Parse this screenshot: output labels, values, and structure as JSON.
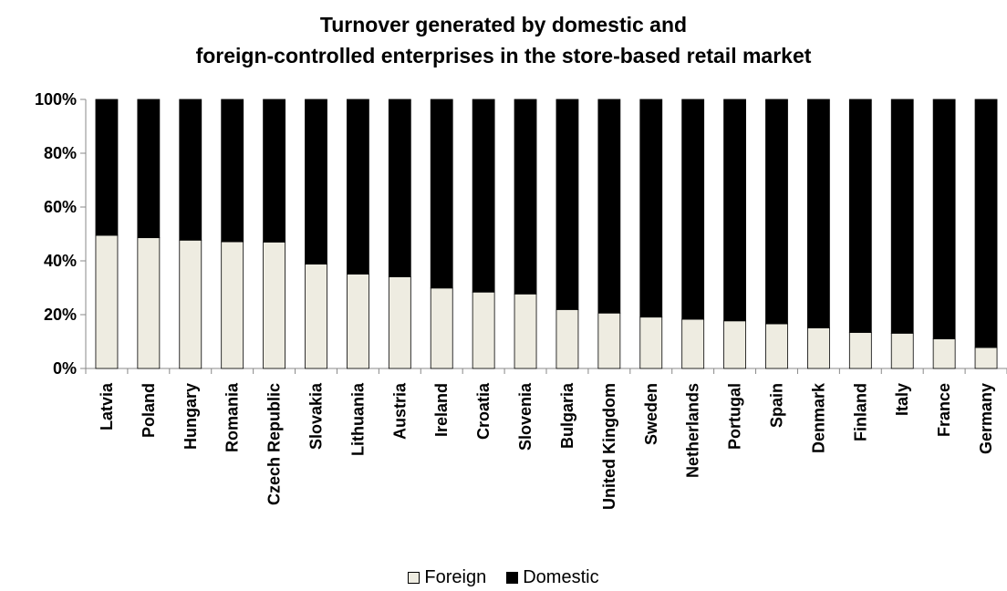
{
  "chart_data": {
    "type": "bar",
    "stacked": true,
    "title_line1": "Turnover generated by domestic and",
    "title_line2": "foreign-controlled enterprises in the store-based retail market",
    "xlabel": "",
    "ylabel": "",
    "ylim": [
      0,
      100
    ],
    "y_ticks": [
      "0%",
      "20%",
      "40%",
      "60%",
      "80%",
      "100%"
    ],
    "categories": [
      "Latvia",
      "Poland",
      "Hungary",
      "Romania",
      "Czech Republic",
      "Slovakia",
      "Lithuania",
      "Austria",
      "Ireland",
      "Croatia",
      "Slovenia",
      "Bulgaria",
      "United Kingdom",
      "Sweden",
      "Netherlands",
      "Portugal",
      "Spain",
      "Denmark",
      "Finland",
      "Italy",
      "France",
      "Germany"
    ],
    "series": [
      {
        "name": "Foreign",
        "color": "#eeece1",
        "values": [
          49.5,
          48.6,
          47.7,
          47.1,
          47.0,
          38.8,
          35.1,
          34.1,
          29.9,
          28.4,
          27.7,
          21.9,
          20.6,
          19.1,
          18.3,
          17.7,
          16.6,
          15.1,
          13.4,
          13.1,
          11.0,
          7.8
        ]
      },
      {
        "name": "Domestic",
        "color": "#000000",
        "values": [
          50.5,
          51.4,
          52.3,
          52.9,
          53.0,
          61.2,
          64.9,
          65.9,
          70.1,
          71.6,
          72.3,
          78.1,
          79.4,
          80.9,
          81.7,
          82.3,
          83.4,
          84.9,
          86.6,
          86.9,
          89.0,
          92.2
        ]
      }
    ],
    "legend_position": "bottom",
    "grid": false
  }
}
